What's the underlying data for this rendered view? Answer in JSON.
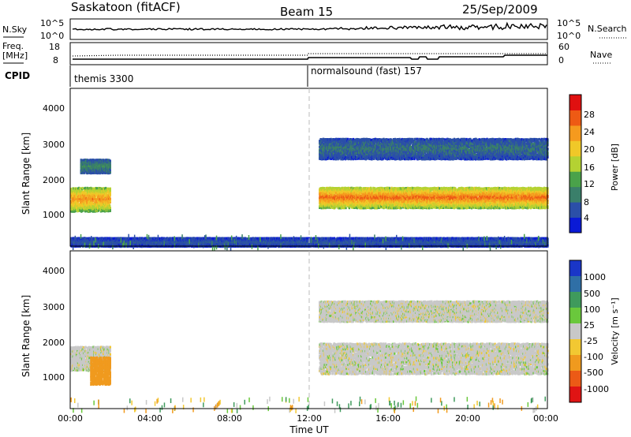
{
  "header": {
    "station": "Saskatoon (fitACF)",
    "beam": "Beam 15",
    "date": "25/Sep/2009"
  },
  "noise_panel": {
    "left_label": "N.Sky",
    "right_label": "N.Search",
    "left_ticks": [
      "10^5",
      "10^0"
    ],
    "right_ticks": [
      "10^5",
      "10^0"
    ]
  },
  "freq_panel": {
    "left_label_1": "Freq.",
    "left_label_2": "[MHz]",
    "right_label": "Nave",
    "left_ticks": [
      "18",
      "8"
    ],
    "right_ticks": [
      "60",
      "0"
    ]
  },
  "cpid": {
    "label": "CPID",
    "segments": [
      "themis 3300",
      "normalsound (fast) 157"
    ]
  },
  "axes": {
    "ylabel": "Slant Range [km]",
    "xlabel": "Time UT",
    "yticks": [
      "1000",
      "2000",
      "3000",
      "4000"
    ],
    "xticks": [
      "00:00",
      "04:00",
      "08:00",
      "12:00",
      "16:00",
      "20:00",
      "00:00"
    ]
  },
  "power_colorbar": {
    "label": "Power [dB]",
    "ticks": [
      "4",
      "8",
      "12",
      "16",
      "20",
      "24",
      "28"
    ],
    "colors": [
      "#0a1ad6",
      "#2b4fa8",
      "#3a7f6a",
      "#4aa24a",
      "#b4d232",
      "#f0c828",
      "#f59a1e",
      "#ee5a14",
      "#e01010"
    ]
  },
  "velocity_colorbar": {
    "label": "Velocity [m s⁻¹]",
    "ticks": [
      "1000",
      "500",
      "100",
      "25",
      "-25",
      "-100",
      "-500",
      "-1000"
    ],
    "colors": [
      "#1a36c8",
      "#2f6fa6",
      "#3f9a5c",
      "#6ac83c",
      "#c8c8c8",
      "#f2c832",
      "#f09a1e",
      "#ec5a16",
      "#e01414"
    ]
  },
  "chart_data": {
    "type": "heatmap",
    "title": "Saskatoon (fitACF)",
    "xlabel": "Time UT",
    "ylabel": "Slant Range [km]",
    "xlim": [
      "00:00",
      "24:00"
    ],
    "ylim": [
      180,
      4700
    ],
    "panels": [
      {
        "name": "Power",
        "unit": "dB",
        "bands": [
          {
            "start": "00:00",
            "end": "02:00",
            "range": [
              1200,
              1900
            ],
            "level": 24
          },
          {
            "start": "00:30",
            "end": "02:00",
            "range": [
              2300,
              2700
            ],
            "level": 10
          },
          {
            "start": "12:30",
            "end": "24:00",
            "range": [
              1300,
              1900
            ],
            "level": 26
          },
          {
            "start": "12:30",
            "end": "24:00",
            "range": [
              2700,
              3300
            ],
            "level": 8
          },
          {
            "start": "00:00",
            "end": "24:00",
            "range": [
              200,
              450
            ],
            "level": 6
          }
        ]
      },
      {
        "name": "Velocity",
        "unit": "m s⁻¹",
        "bands": [
          {
            "start": "00:00",
            "end": "02:00",
            "range": [
              1300,
              2000
            ],
            "level": 0
          },
          {
            "start": "01:00",
            "end": "02:00",
            "range": [
              900,
              1700
            ],
            "level": -300
          },
          {
            "start": "12:30",
            "end": "24:00",
            "range": [
              1200,
              2100
            ],
            "level": 0
          },
          {
            "start": "12:30",
            "end": "24:00",
            "range": [
              2700,
              3300
            ],
            "level": 0
          }
        ]
      }
    ]
  }
}
